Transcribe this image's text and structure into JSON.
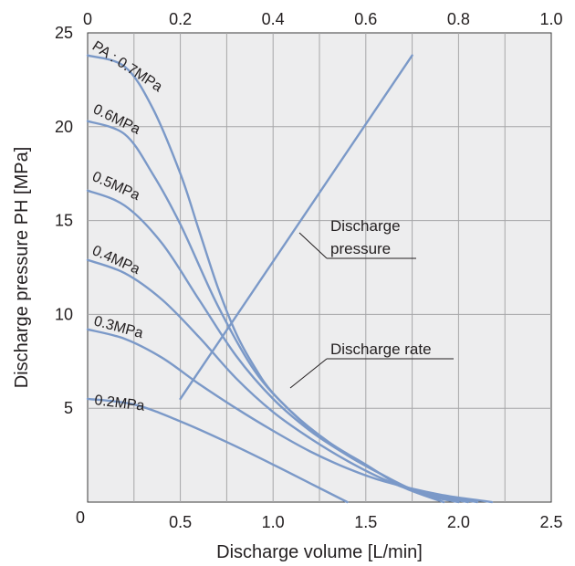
{
  "chart_data": {
    "type": "line",
    "title": "",
    "xlabel": "Discharge volume [L/min]",
    "ylabel": "Discharge pressure  PH [MPa]",
    "x_bottom": {
      "range": [
        0,
        2.5
      ],
      "ticks": [
        0.5,
        1.0,
        1.5,
        2.0,
        2.5
      ],
      "tick_labels": [
        "0.5",
        "1.0",
        "1.5",
        "2.0",
        "2.5"
      ]
    },
    "x_top": {
      "range": [
        0,
        1.0
      ],
      "ticks": [
        0,
        0.2,
        0.4,
        0.6,
        0.8,
        1.0
      ],
      "tick_labels": [
        "0",
        "0.2",
        "0.4",
        "0.6",
        "0.8",
        "1.0"
      ]
    },
    "y": {
      "range": [
        0,
        25
      ],
      "ticks": [
        5,
        10,
        15,
        20,
        25
      ],
      "tick_labels": [
        "5",
        "10",
        "15",
        "20",
        "25"
      ]
    },
    "origin_label": "0",
    "grid": true,
    "plot_background": "#ededee",
    "line_color": "#7b99c8",
    "series": [
      {
        "name": "PA : 0.7MPa",
        "points": [
          [
            0,
            23.8
          ],
          [
            0.2,
            23.2
          ],
          [
            0.35,
            21.0
          ],
          [
            0.5,
            17.5
          ],
          [
            0.6,
            14.5
          ],
          [
            0.7,
            11.5
          ],
          [
            0.8,
            9.0
          ],
          [
            0.9,
            7.2
          ],
          [
            1.0,
            5.8
          ],
          [
            1.2,
            3.9
          ],
          [
            1.4,
            2.5
          ],
          [
            1.6,
            1.4
          ],
          [
            1.75,
            0.6
          ],
          [
            1.92,
            0
          ]
        ]
      },
      {
        "name": "0.6MPa",
        "points": [
          [
            0,
            20.3
          ],
          [
            0.2,
            19.6
          ],
          [
            0.35,
            17.5
          ],
          [
            0.5,
            14.8
          ],
          [
            0.7,
            10.5
          ],
          [
            0.9,
            7.0
          ],
          [
            1.1,
            4.8
          ],
          [
            1.3,
            3.2
          ],
          [
            1.5,
            2.0
          ],
          [
            1.7,
            0.8
          ],
          [
            1.85,
            0.3
          ],
          [
            2.0,
            0
          ]
        ]
      },
      {
        "name": "0.5MPa",
        "points": [
          [
            0,
            16.6
          ],
          [
            0.2,
            15.8
          ],
          [
            0.4,
            13.8
          ],
          [
            0.6,
            10.8
          ],
          [
            0.8,
            7.8
          ],
          [
            1.0,
            5.5
          ],
          [
            1.2,
            3.8
          ],
          [
            1.4,
            2.5
          ],
          [
            1.6,
            1.4
          ],
          [
            1.8,
            0.5
          ],
          [
            2.05,
            0
          ]
        ]
      },
      {
        "name": "0.4MPa",
        "points": [
          [
            0,
            12.9
          ],
          [
            0.2,
            12.2
          ],
          [
            0.4,
            10.8
          ],
          [
            0.6,
            8.8
          ],
          [
            0.8,
            6.6
          ],
          [
            1.0,
            4.8
          ],
          [
            1.2,
            3.4
          ],
          [
            1.4,
            2.2
          ],
          [
            1.6,
            1.2
          ],
          [
            1.8,
            0.5
          ],
          [
            2.1,
            0
          ]
        ]
      },
      {
        "name": "0.3MPa",
        "points": [
          [
            0,
            9.2
          ],
          [
            0.2,
            8.7
          ],
          [
            0.4,
            7.7
          ],
          [
            0.6,
            6.3
          ],
          [
            0.8,
            5.0
          ],
          [
            1.0,
            3.8
          ],
          [
            1.2,
            2.7
          ],
          [
            1.4,
            1.8
          ],
          [
            1.6,
            1.1
          ],
          [
            1.9,
            0.4
          ],
          [
            2.18,
            0
          ]
        ]
      },
      {
        "name": "0.2MPa",
        "points": [
          [
            0,
            5.5
          ],
          [
            0.25,
            5.2
          ],
          [
            0.5,
            4.3
          ],
          [
            0.75,
            3.2
          ],
          [
            1.0,
            2.0
          ],
          [
            1.2,
            1.0
          ],
          [
            1.4,
            0
          ]
        ]
      },
      {
        "name": "Discharge pressure",
        "axis": "top",
        "points": [
          [
            0.2,
            5.5
          ],
          [
            0.7,
            23.8
          ]
        ]
      }
    ],
    "annotations": [
      {
        "lines": [
          "Discharge",
          "pressure"
        ]
      },
      {
        "lines": [
          "Discharge rate"
        ]
      }
    ]
  }
}
